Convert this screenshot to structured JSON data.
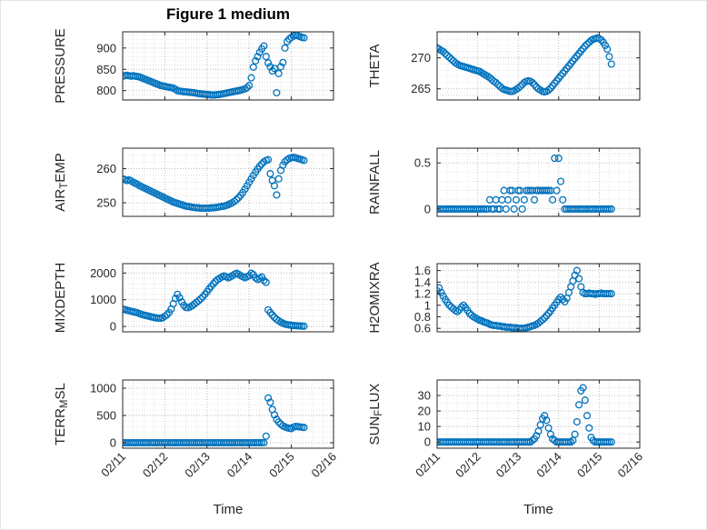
{
  "figure": {
    "marker_color": "#0072BD",
    "axis_color": "#262626",
    "grid_color": "#b9b9b9",
    "minor_grid_color": "#dcdcdc",
    "background": "#ffffff"
  },
  "chart_data": {
    "type": "scatter",
    "title": "Figure 1 medium",
    "x_label": "Time",
    "legend": "none",
    "grid": "on",
    "x_lim": [
      0,
      5
    ],
    "x_minor_step": 0.25,
    "x_ticks": [
      0,
      1,
      2,
      3,
      4,
      5
    ],
    "x_tick_labels": [
      "02/11",
      "02/12",
      "02/13",
      "02/14",
      "02/15",
      "02/16"
    ],
    "x_days": [
      0,
      0.05,
      0.1,
      0.15,
      0.2,
      0.25,
      0.3,
      0.35,
      0.4,
      0.45,
      0.5,
      0.55,
      0.6,
      0.65,
      0.7,
      0.75,
      0.8,
      0.85,
      0.9,
      0.95,
      1,
      1.05,
      1.1,
      1.15,
      1.2,
      1.25,
      1.3,
      1.35,
      1.4,
      1.45,
      1.5,
      1.55,
      1.6,
      1.65,
      1.7,
      1.75,
      1.8,
      1.85,
      1.9,
      1.95,
      2,
      2.05,
      2.1,
      2.15,
      2.2,
      2.25,
      2.3,
      2.35,
      2.4,
      2.45,
      2.5,
      2.55,
      2.6,
      2.65,
      2.7,
      2.75,
      2.8,
      2.85,
      2.9,
      2.95,
      3,
      3.05,
      3.1,
      3.15,
      3.2,
      3.25,
      3.3,
      3.35,
      3.4,
      3.45,
      3.5,
      3.55,
      3.6,
      3.65,
      3.7,
      3.75,
      3.8,
      3.85,
      3.9,
      3.95,
      4,
      4.05,
      4.1,
      4.15,
      4.2,
      4.25,
      4.3
    ],
    "subplots": [
      {
        "name": "PRESSURE",
        "ylabel_parts": [
          {
            "text": "PRESSURE",
            "sub": false
          }
        ],
        "yticks": [
          800,
          850,
          900
        ],
        "ylim": [
          778,
          938
        ],
        "y_minor_step": 10,
        "values": [
          834,
          835,
          836,
          835,
          834,
          835,
          834,
          833,
          832,
          830,
          828,
          826,
          824,
          822,
          820,
          818,
          816,
          814,
          812,
          811,
          810,
          809,
          808,
          807,
          806,
          803,
          800,
          799,
          798,
          797.5,
          797,
          796.5,
          796,
          795.5,
          795,
          794,
          793,
          792.5,
          792,
          791.5,
          791,
          790.5,
          790,
          790,
          790,
          790.5,
          791,
          792,
          793,
          794,
          795,
          796,
          797,
          798,
          799,
          800,
          801,
          802.5,
          804,
          807,
          812,
          830,
          855,
          870,
          880,
          890,
          898,
          905,
          880,
          865,
          856,
          846,
          852,
          795,
          840,
          856,
          866,
          900,
          915,
          921,
          925,
          928,
          930,
          929,
          927,
          925,
          924
        ]
      },
      {
        "name": "THETA",
        "ylabel_parts": [
          {
            "text": "THETA",
            "sub": false
          }
        ],
        "yticks": [
          265,
          270
        ],
        "ylim": [
          263.2,
          274.2
        ],
        "y_minor_step": 1,
        "values": [
          271.6,
          271.4,
          271.2,
          271,
          270.7,
          270.4,
          270.1,
          269.8,
          269.5,
          269.2,
          269,
          268.8,
          268.7,
          268.6,
          268.5,
          268.4,
          268.3,
          268.2,
          268.1,
          268,
          267.9,
          267.8,
          267.6,
          267.4,
          267.2,
          267,
          266.8,
          266.5,
          266.2,
          266,
          265.7,
          265.4,
          265.1,
          264.9,
          264.8,
          264.7,
          264.6,
          264.6,
          264.7,
          264.9,
          265.1,
          265.4,
          265.7,
          266,
          266.2,
          266.3,
          266.2,
          266,
          265.7,
          265.3,
          265,
          264.8,
          264.6,
          264.5,
          264.6,
          264.8,
          265.1,
          265.5,
          265.9,
          266.3,
          266.7,
          267.1,
          267.5,
          267.9,
          268.3,
          268.7,
          269.1,
          269.5,
          269.9,
          270.3,
          270.7,
          271.1,
          271.5,
          271.9,
          272.2,
          272.5,
          272.8,
          273,
          273.1,
          273.2,
          273.1,
          272.9,
          272.5,
          272,
          271.4,
          270.2,
          269
        ]
      },
      {
        "name": "AIR_TEMP",
        "ylabel_parts": [
          {
            "text": "AIR",
            "sub": false
          },
          {
            "text": "T",
            "sub": true
          },
          {
            "text": "EMP",
            "sub": false
          }
        ],
        "yticks": [
          250,
          260
        ],
        "ylim": [
          246,
          266
        ],
        "y_minor_step": 2,
        "values": [
          257,
          256.8,
          256.5,
          256.7,
          256.4,
          256,
          255.7,
          255.4,
          255,
          254.7,
          254.4,
          254.1,
          253.8,
          253.5,
          253.2,
          252.9,
          252.6,
          252.3,
          252,
          251.7,
          251.4,
          251.1,
          250.8,
          250.5,
          250.2,
          250,
          249.8,
          249.6,
          249.4,
          249.2,
          249,
          248.9,
          248.8,
          248.7,
          248.6,
          248.5,
          248.5,
          248.4,
          248.4,
          248.4,
          248.4,
          248.4,
          248.5,
          248.5,
          248.6,
          248.7,
          248.8,
          248.9,
          249,
          249.2,
          249.4,
          249.7,
          250,
          250.4,
          250.9,
          251.5,
          252.2,
          253,
          254,
          255,
          256,
          257,
          258,
          259,
          259.9,
          260.7,
          261.4,
          262,
          262.4,
          262.6,
          258.5,
          256.5,
          255,
          252.3,
          257,
          259.5,
          261,
          262,
          262.6,
          263,
          263.2,
          263.3,
          263.2,
          263,
          262.8,
          262.6,
          262.4
        ]
      },
      {
        "name": "RAINFALL",
        "ylabel_parts": [
          {
            "text": "RAINFALL",
            "sub": false
          }
        ],
        "yticks": [
          0,
          0.5
        ],
        "ylim": [
          -0.08,
          0.66
        ],
        "y_minor_step": 0.1,
        "values": [
          0,
          0,
          0,
          0,
          0,
          0,
          0,
          0,
          0,
          0,
          0,
          0,
          0,
          0,
          0,
          0,
          0,
          0,
          0,
          0,
          0,
          0,
          0,
          0,
          0,
          0,
          0.1,
          0,
          0,
          0.1,
          0,
          0,
          0.1,
          0.2,
          0,
          0.1,
          0.2,
          0.2,
          0,
          0.1,
          0.2,
          0.2,
          0,
          0.1,
          0.2,
          0.2,
          0.2,
          0.2,
          0.1,
          0.2,
          0.2,
          0.2,
          0.2,
          0.2,
          0.2,
          0.2,
          0.2,
          0.1,
          0.55,
          0.2,
          0.55,
          0.3,
          0.1,
          0,
          0,
          0,
          0,
          0,
          0,
          0,
          0,
          0,
          0,
          0,
          0,
          0,
          0,
          0,
          0,
          0,
          0,
          0,
          0,
          0,
          0,
          0,
          0,
          0
        ]
      },
      {
        "name": "MIXDEPTH",
        "ylabel_parts": [
          {
            "text": "MIXDEPTH",
            "sub": false
          }
        ],
        "yticks": [
          0,
          1000,
          2000
        ],
        "ylim": [
          -200,
          2350
        ],
        "y_minor_step": 200,
        "values": [
          650,
          630,
          610,
          590,
          570,
          550,
          530,
          510,
          480,
          450,
          430,
          410,
          390,
          370,
          350,
          335,
          320,
          310,
          305,
          330,
          380,
          440,
          520,
          650,
          850,
          1050,
          1200,
          1080,
          920,
          790,
          710,
          700,
          730,
          780,
          840,
          900,
          960,
          1030,
          1110,
          1200,
          1300,
          1400,
          1500,
          1600,
          1680,
          1750,
          1800,
          1850,
          1890,
          1860,
          1820,
          1850,
          1900,
          1950,
          1990,
          1950,
          1900,
          1860,
          1820,
          1860,
          1900,
          1990,
          1940,
          1820,
          1760,
          1800,
          1850,
          1720,
          1650,
          620,
          520,
          430,
          340,
          270,
          210,
          160,
          120,
          90,
          70,
          55,
          45,
          35,
          30,
          25,
          20,
          15,
          10
        ]
      },
      {
        "name": "H2OMIXRA",
        "ylabel_parts": [
          {
            "text": "H2OMIXRA",
            "sub": false
          }
        ],
        "yticks": [
          0.6,
          0.8,
          1,
          1.2,
          1.4,
          1.6
        ],
        "ylim": [
          0.54,
          1.72
        ],
        "y_minor_step": 0.1,
        "values": [
          1.25,
          1.3,
          1.22,
          1.16,
          1.1,
          1.05,
          1,
          0.97,
          0.94,
          0.91,
          0.89,
          0.92,
          0.97,
          1,
          0.96,
          0.91,
          0.86,
          0.83,
          0.8,
          0.78,
          0.76,
          0.74,
          0.73,
          0.71,
          0.7,
          0.69,
          0.67,
          0.66,
          0.65,
          0.65,
          0.64,
          0.64,
          0.63,
          0.63,
          0.62,
          0.62,
          0.62,
          0.61,
          0.61,
          0.61,
          0.6,
          0.6,
          0.6,
          0.6,
          0.61,
          0.62,
          0.63,
          0.64,
          0.65,
          0.67,
          0.69,
          0.72,
          0.75,
          0.78,
          0.82,
          0.86,
          0.9,
          0.95,
          1,
          1.05,
          1.1,
          1.14,
          1.1,
          1.06,
          1.12,
          1.22,
          1.32,
          1.42,
          1.52,
          1.6,
          1.46,
          1.32,
          1.22,
          1.2,
          1.2,
          1.21,
          1.2,
          1.2,
          1.19,
          1.2,
          1.2,
          1.21,
          1.2,
          1.2,
          1.2,
          1.2,
          1.2
        ]
      },
      {
        "name": "TERR_MSL",
        "ylabel_parts": [
          {
            "text": "TERR",
            "sub": false
          },
          {
            "text": "M",
            "sub": true
          },
          {
            "text": "SL",
            "sub": false
          }
        ],
        "yticks": [
          0,
          500,
          1000
        ],
        "ylim": [
          -100,
          1150
        ],
        "y_minor_step": 100,
        "values": [
          0,
          0,
          0,
          0,
          0,
          0,
          0,
          0,
          0,
          0,
          0,
          0,
          0,
          0,
          0,
          0,
          0,
          0,
          0,
          0,
          0,
          0,
          0,
          0,
          0,
          0,
          0,
          0,
          0,
          0,
          0,
          0,
          0,
          0,
          0,
          0,
          0,
          0,
          0,
          0,
          0,
          0,
          0,
          0,
          0,
          0,
          0,
          0,
          0,
          0,
          0,
          0,
          0,
          0,
          0,
          0,
          0,
          0,
          0,
          0,
          0,
          0,
          0,
          0,
          0,
          0,
          0,
          0,
          120,
          820,
          740,
          610,
          510,
          430,
          380,
          340,
          310,
          290,
          275,
          265,
          260,
          285,
          300,
          295,
          290,
          285,
          280
        ]
      },
      {
        "name": "SUN_FLUX",
        "ylabel_parts": [
          {
            "text": "SUN",
            "sub": false
          },
          {
            "text": "F",
            "sub": true
          },
          {
            "text": "LUX",
            "sub": false
          }
        ],
        "yticks": [
          0,
          10,
          20,
          30
        ],
        "ylim": [
          -4,
          40
        ],
        "y_minor_step": 5,
        "values": [
          0,
          0,
          0,
          0,
          0,
          0,
          0,
          0,
          0,
          0,
          0,
          0,
          0,
          0,
          0,
          0,
          0,
          0,
          0,
          0,
          0,
          0,
          0,
          0,
          0,
          0,
          0,
          0,
          0,
          0,
          0,
          0,
          0,
          0,
          0,
          0,
          0,
          0,
          0,
          0,
          0,
          0,
          0,
          0,
          0,
          0,
          0,
          1,
          2,
          4,
          7,
          11,
          15,
          17,
          14,
          9,
          5,
          2,
          1,
          0,
          0,
          0,
          0,
          0,
          0,
          0,
          0,
          1,
          5,
          13,
          24,
          33,
          35,
          27,
          17,
          9,
          3,
          1,
          0,
          0,
          0,
          0,
          0,
          0,
          0,
          0,
          0
        ]
      }
    ]
  }
}
